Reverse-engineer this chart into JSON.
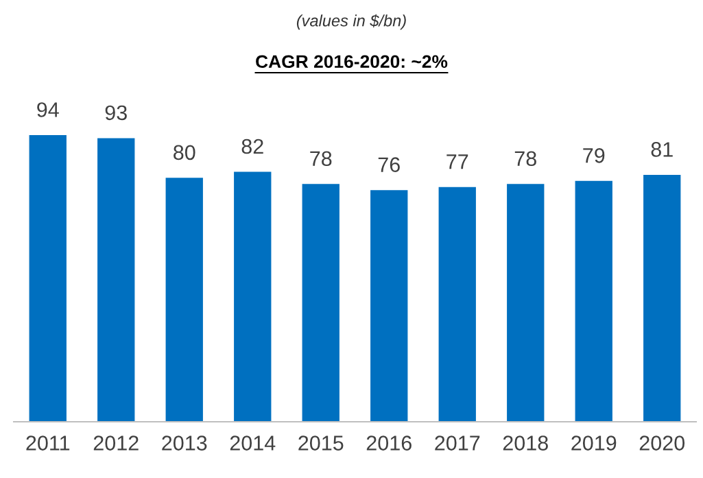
{
  "chart_data": {
    "type": "bar",
    "title": "CAGR 2016-2020: ~2%",
    "subtitle": "(values in $/bn)",
    "categories": [
      "2011",
      "2012",
      "2013",
      "2014",
      "2015",
      "2016",
      "2017",
      "2018",
      "2019",
      "2020"
    ],
    "values": [
      94,
      93,
      80,
      82,
      78,
      76,
      77,
      78,
      79,
      81
    ],
    "color": "#0070c0",
    "data_labels": true,
    "grid": false,
    "legend": false
  }
}
